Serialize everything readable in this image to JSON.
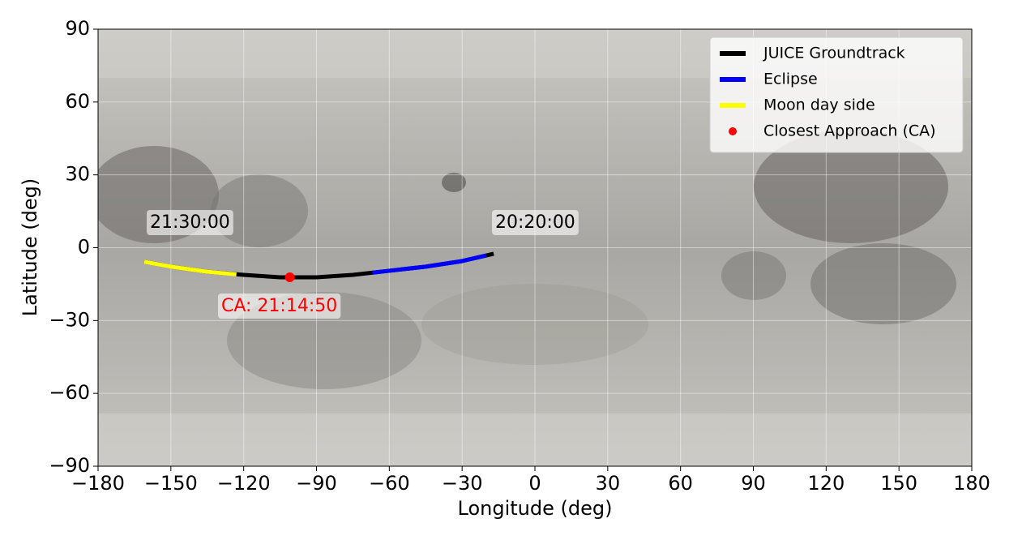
{
  "chart_data": {
    "type": "line",
    "xlabel": "Longitude (deg)",
    "ylabel": "Latitude (deg)",
    "xlim": [
      -180,
      180
    ],
    "ylim": [
      -90,
      90
    ],
    "xticks": [
      {
        "value": -180,
        "label": "−180"
      },
      {
        "value": -150,
        "label": "−150"
      },
      {
        "value": -120,
        "label": "−120"
      },
      {
        "value": -90,
        "label": "−90"
      },
      {
        "value": -60,
        "label": "−60"
      },
      {
        "value": -30,
        "label": "−30"
      },
      0,
      30,
      60,
      90,
      120,
      150,
      180
    ],
    "yticks": [
      {
        "value": -90,
        "label": "−90"
      },
      {
        "value": -60,
        "label": "−60"
      },
      {
        "value": -30,
        "label": "−30"
      },
      0,
      30,
      60,
      90
    ],
    "grid": true,
    "legend": "upper right",
    "series": [
      {
        "name": "JUICE Groundtrack",
        "color": "#000000",
        "style": "line",
        "x": [
          -17,
          -20,
          -30,
          -45,
          -60,
          -75,
          -90,
          -105,
          -120,
          -135,
          -150,
          -161
        ],
        "values": [
          -2.5,
          -3.2,
          -5.5,
          -7.8,
          -9.5,
          -11.2,
          -12.2,
          -12.2,
          -11.2,
          -9.9,
          -7.8,
          -5.8
        ]
      },
      {
        "name": "Eclipse",
        "color": "#0000ff",
        "style": "line",
        "x": [
          -20,
          -30,
          -45,
          -60,
          -67
        ],
        "values": [
          -3.2,
          -5.5,
          -7.8,
          -9.5,
          -10.3
        ]
      },
      {
        "name": "Moon day side",
        "color": "#ffff00",
        "style": "line",
        "x": [
          -123,
          -135,
          -150,
          -161
        ],
        "values": [
          -11,
          -9.9,
          -7.8,
          -5.8
        ]
      },
      {
        "name": "Closest Approach (CA)",
        "color": "#ff0000",
        "style": "point",
        "x": [
          -101
        ],
        "values": [
          -12.2
        ]
      }
    ],
    "annotations": [
      {
        "text": "21:30:00",
        "color": "#000000"
      },
      {
        "text": "20:20:00",
        "color": "#000000"
      },
      {
        "text": "CA: 21:14:50",
        "color": "#ff0000"
      }
    ]
  }
}
